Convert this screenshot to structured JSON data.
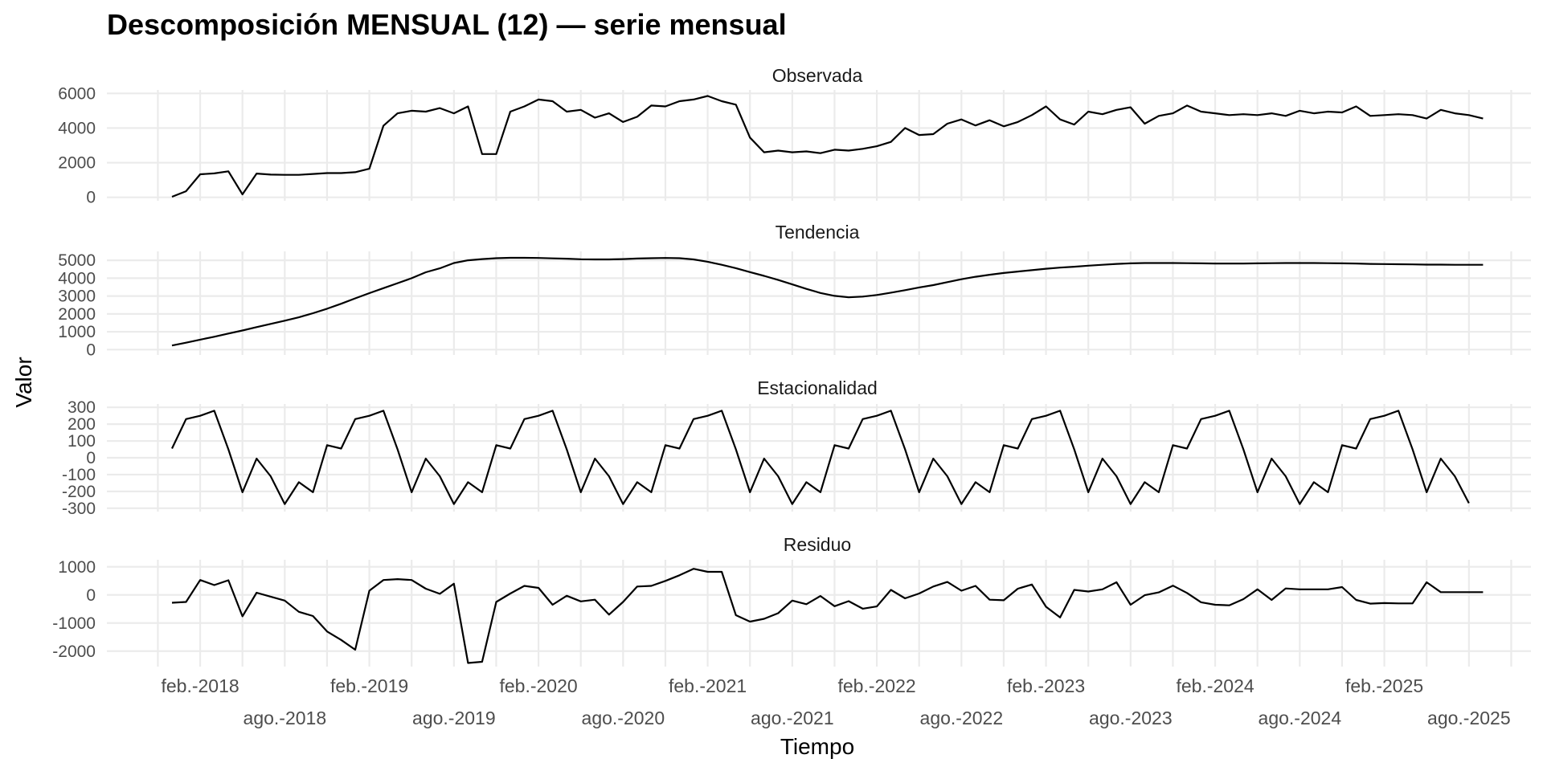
{
  "chart_data": {
    "type": "line",
    "title": "Descomposición MENSUAL (12) — serie mensual",
    "xlabel": "Tiempo",
    "ylabel": "Valor",
    "grid": true,
    "x_start": "2017-12",
    "x_ticks": [
      "feb.-2018",
      "ago.-2018",
      "feb.-2019",
      "ago.-2019",
      "feb.-2020",
      "ago.-2020",
      "feb.-2021",
      "ago.-2021",
      "feb.-2022",
      "ago.-2022",
      "feb.-2023",
      "ago.-2023",
      "feb.-2024",
      "ago.-2024",
      "feb.-2025",
      "ago.-2025"
    ],
    "panels": [
      {
        "name": "Observada",
        "ylim": [
          -200,
          6200
        ],
        "yticks": [
          "0",
          "2000",
          "4000",
          "6000"
        ],
        "ytick_values": [
          0,
          2000,
          4000,
          6000
        ],
        "values": [
          30,
          350,
          1330,
          1380,
          1500,
          170,
          1370,
          1310,
          1300,
          1300,
          1350,
          1400,
          1400,
          1450,
          1650,
          4130,
          4850,
          5000,
          4950,
          5150,
          4850,
          5250,
          2500,
          2500,
          4950,
          5250,
          5650,
          5550,
          4950,
          5050,
          4600,
          4850,
          4350,
          4650,
          5300,
          5250,
          5550,
          5650,
          5850,
          5550,
          5350,
          3450,
          2600,
          2700,
          2600,
          2650,
          2550,
          2750,
          2700,
          2800,
          2950,
          3200,
          4000,
          3600,
          3650,
          4250,
          4500,
          4150,
          4450,
          4100,
          4350,
          4750,
          5250,
          4500,
          4200,
          4950,
          4800,
          5050,
          5200,
          4250,
          4700,
          4850,
          5300,
          4950,
          4850,
          4750,
          4800,
          4750,
          4850,
          4700,
          5000,
          4850,
          4950,
          4900,
          5250,
          4700,
          4750,
          4800,
          4750,
          4550,
          5050,
          4850,
          4750,
          4550
        ]
      },
      {
        "name": "Tendencia",
        "ylim": [
          -300,
          5500
        ],
        "yticks": [
          "0",
          "1000",
          "2000",
          "3000",
          "4000",
          "5000"
        ],
        "ytick_values": [
          0,
          1000,
          2000,
          3000,
          4000,
          5000
        ],
        "values": [
          230,
          390,
          560,
          720,
          900,
          1070,
          1260,
          1440,
          1620,
          1810,
          2040,
          2290,
          2570,
          2870,
          3160,
          3440,
          3720,
          4000,
          4330,
          4550,
          4850,
          5000,
          5070,
          5120,
          5140,
          5140,
          5130,
          5110,
          5090,
          5060,
          5050,
          5050,
          5070,
          5100,
          5120,
          5130,
          5120,
          5050,
          4920,
          4750,
          4560,
          4340,
          4130,
          3900,
          3650,
          3400,
          3170,
          3010,
          2930,
          2970,
          3060,
          3190,
          3330,
          3480,
          3610,
          3780,
          3940,
          4080,
          4190,
          4290,
          4370,
          4450,
          4530,
          4590,
          4640,
          4700,
          4750,
          4800,
          4830,
          4850,
          4850,
          4850,
          4840,
          4830,
          4820,
          4820,
          4820,
          4830,
          4840,
          4850,
          4850,
          4850,
          4840,
          4830,
          4820,
          4800,
          4790,
          4780,
          4770,
          4760,
          4760,
          4750,
          4750,
          4750
        ]
      },
      {
        "name": "Estacionalidad",
        "ylim": [
          -320,
          320
        ],
        "yticks": [
          "300",
          "200",
          "100",
          "0",
          "-100",
          "-200",
          "-300"
        ],
        "ytick_values": [
          300,
          200,
          100,
          0,
          -100,
          -200,
          -300
        ],
        "values": [
          55,
          230,
          250,
          280,
          50,
          -205,
          -5,
          -110,
          -275,
          -145,
          -205,
          75,
          55,
          230,
          250,
          280,
          50,
          -205,
          -5,
          -110,
          -275,
          -145,
          -205,
          75,
          55,
          230,
          250,
          280,
          50,
          -205,
          -5,
          -110,
          -275,
          -145,
          -205,
          75,
          55,
          230,
          250,
          280,
          50,
          -205,
          -5,
          -110,
          -275,
          -145,
          -205,
          75,
          55,
          230,
          250,
          280,
          50,
          -205,
          -5,
          -110,
          -275,
          -145,
          -205,
          75,
          55,
          230,
          250,
          280,
          50,
          -205,
          -5,
          -110,
          -275,
          -145,
          -205,
          75,
          55,
          230,
          250,
          280,
          50,
          -205,
          -5,
          -110,
          -275,
          -145,
          -205,
          75,
          55,
          230,
          250,
          280,
          50,
          -205,
          -5,
          -110,
          -270
        ]
      },
      {
        "name": "Residuo",
        "ylim": [
          -2550,
          1250
        ],
        "yticks": [
          "1000",
          "0",
          "-1000",
          "-2000"
        ],
        "ytick_values": [
          1000,
          0,
          -1000,
          -2000
        ],
        "values": [
          -280,
          -250,
          530,
          350,
          520,
          -760,
          80,
          -60,
          -200,
          -600,
          -750,
          -1300,
          -1600,
          -1950,
          150,
          530,
          560,
          530,
          220,
          40,
          400,
          -2420,
          -2380,
          -250,
          50,
          320,
          250,
          -350,
          -30,
          -230,
          -170,
          -700,
          -250,
          300,
          320,
          500,
          700,
          930,
          820,
          820,
          -720,
          -950,
          -850,
          -650,
          -200,
          -330,
          -40,
          -400,
          -220,
          -490,
          -410,
          180,
          -120,
          50,
          300,
          460,
          150,
          320,
          -170,
          -190,
          220,
          370,
          -420,
          -800,
          180,
          120,
          200,
          450,
          -350,
          -10,
          90,
          330,
          70,
          -260,
          -350,
          -370,
          -150,
          200,
          -180,
          230,
          200,
          200,
          200,
          280,
          -180,
          -310,
          -290,
          -300,
          -300,
          450,
          100,
          100,
          100,
          100
        ]
      }
    ]
  }
}
